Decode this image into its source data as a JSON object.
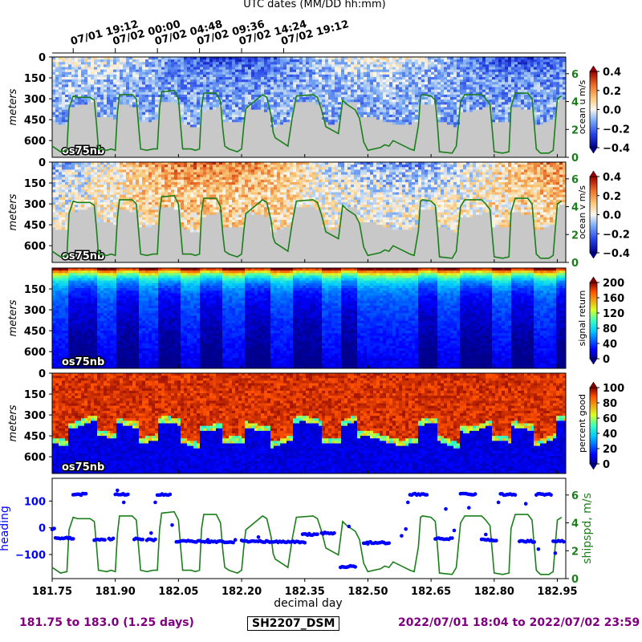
{
  "header": {
    "utc_title": "UTC dates (MM/DD hh:mm)"
  },
  "top_ticks": [
    "07/01 19:12",
    "07/02 00:00",
    "07/02 04:48",
    "07/02 09:36",
    "07/02 14:24",
    "07/02 19:12"
  ],
  "footer": {
    "range_text": "181.75 to 183.0 (1.25 days)",
    "cruise_label": "SH2207_DSM",
    "dates_text": "2022/07/01 18:04 to 2022/07/02 23:59"
  },
  "colors": {
    "shipspd": "#1a7f1a",
    "heading": "#0000ff",
    "footer": "#800080",
    "bad_data": "#c8c8c8"
  },
  "chart_data": [
    {
      "type": "heatmap",
      "panel": "u",
      "ylabel": "meters",
      "yticks": [
        "0",
        "150",
        "300",
        "450",
        "600"
      ],
      "instrument": "os75nb",
      "colorbar_label": "ocean u m/s",
      "cmap": "bwr",
      "cbar_ticks": [
        "0.4",
        "0.2",
        "0.0",
        "−0.2",
        "−0.4"
      ],
      "clim": [
        -0.4,
        0.4
      ],
      "right_axis_ticks": [
        "0",
        "2",
        "4",
        "6"
      ]
    },
    {
      "type": "heatmap",
      "panel": "v",
      "ylabel": "meters",
      "yticks": [
        "0",
        "150",
        "300",
        "450",
        "600"
      ],
      "instrument": "os75nb",
      "colorbar_label": "ocean v m/s",
      "cmap": "bwr",
      "cbar_ticks": [
        "0.4",
        "0.2",
        "0.0",
        "−0.2",
        "−0.4"
      ],
      "clim": [
        -0.4,
        0.4
      ],
      "right_axis_ticks": [
        "0",
        "2",
        "4",
        "6"
      ]
    },
    {
      "type": "heatmap",
      "panel": "signal",
      "ylabel": "meters",
      "yticks": [
        "150",
        "300",
        "450",
        "600"
      ],
      "instrument": "os75nb",
      "colorbar_label": "signal return",
      "cmap": "jet",
      "cbar_ticks": [
        "200",
        "160",
        "120",
        "80",
        "40",
        "0"
      ],
      "clim": [
        0,
        200
      ]
    },
    {
      "type": "heatmap",
      "panel": "pg",
      "ylabel": "meters",
      "yticks": [
        "0",
        "150",
        "300",
        "450",
        "600"
      ],
      "instrument": "os75nb",
      "colorbar_label": "percent good",
      "cmap": "jet",
      "cbar_ticks": [
        "100",
        "80",
        "60",
        "40",
        "20",
        "0"
      ],
      "clim": [
        0,
        100
      ]
    },
    {
      "type": "scatter",
      "panel": "nav",
      "xlabel": "decimal day",
      "xticks": [
        "181.75",
        "181.90",
        "182.05",
        "182.20",
        "182.35",
        "182.50",
        "182.65",
        "182.80",
        "182.95"
      ],
      "xlim": [
        181.75,
        182.97
      ],
      "ylabel": "heading",
      "yticks": [
        "100",
        "0",
        "−100"
      ],
      "ylim": [
        -190,
        185
      ],
      "y2label": "shipspd, m/s",
      "y2ticks": [
        "6",
        "4",
        "2",
        "0"
      ],
      "y2lim": [
        0,
        7.2
      ],
      "shipspd": {
        "x": [
          181.75,
          181.77,
          181.785,
          181.79,
          181.8,
          181.81,
          181.84,
          181.85,
          181.855,
          181.86,
          181.88,
          181.89,
          181.9,
          181.905,
          181.91,
          181.94,
          181.95,
          181.955,
          181.96,
          181.975,
          181.99,
          182.0,
          182.005,
          182.01,
          182.04,
          182.05,
          182.055,
          182.06,
          182.08,
          182.09,
          182.1,
          182.105,
          182.11,
          182.14,
          182.15,
          182.155,
          182.16,
          182.17,
          182.19,
          182.2,
          182.205,
          182.21,
          182.25,
          182.26,
          182.27,
          182.275,
          182.28,
          182.3,
          182.31,
          182.32,
          182.33,
          182.37,
          182.38,
          182.39,
          182.4,
          182.43,
          182.44,
          182.45,
          182.47,
          182.48,
          182.49,
          182.5,
          182.53,
          182.54,
          182.55,
          182.56,
          182.6,
          182.61,
          182.62,
          182.625,
          182.63,
          182.65,
          182.66,
          182.665,
          182.67,
          182.7,
          182.71,
          182.72,
          182.73,
          182.77,
          182.78,
          182.79,
          182.8,
          182.82,
          182.835,
          182.84,
          182.85,
          182.88,
          182.89,
          182.9,
          182.91,
          182.93,
          182.94,
          182.95,
          182.96
        ],
        "y": [
          0.8,
          0.4,
          0.5,
          3.5,
          4.4,
          4.3,
          4.3,
          4.1,
          2.5,
          0.6,
          0.5,
          0.6,
          0.5,
          3.2,
          4.5,
          4.5,
          4.2,
          2.4,
          0.6,
          0.5,
          0.6,
          0.6,
          3.5,
          4.7,
          4.8,
          4.2,
          2.3,
          0.6,
          0.6,
          0.5,
          0.6,
          3.6,
          4.6,
          4.6,
          4.0,
          2.1,
          0.8,
          0.6,
          0.4,
          0.6,
          2.2,
          3.5,
          4.5,
          4.3,
          3.0,
          1.8,
          1.4,
          1.0,
          0.8,
          2.8,
          4.4,
          4.5,
          4.3,
          3.4,
          2.2,
          1.7,
          4.1,
          3.8,
          3.4,
          2.8,
          1.1,
          0.5,
          0.7,
          0.9,
          0.8,
          1.2,
          0.6,
          0.5,
          2.3,
          4.4,
          4.5,
          4.4,
          4.1,
          2.4,
          0.4,
          0.3,
          0.8,
          4.0,
          4.5,
          4.5,
          4.2,
          3.8,
          0.4,
          0.3,
          0.4,
          3.6,
          4.6,
          4.6,
          4.2,
          0.6,
          0.3,
          0.3,
          0.5,
          4.2,
          4.4
        ]
      },
      "heading": {
        "segments": [
          {
            "x0": 181.75,
            "x1": 181.755,
            "y": -5
          },
          {
            "x0": 181.758,
            "x1": 181.8,
            "y": -38
          },
          {
            "x0": 181.8,
            "x1": 181.83,
            "y": 125
          },
          {
            "x0": 181.85,
            "x1": 181.875,
            "y": -45
          },
          {
            "x0": 181.885,
            "x1": 181.895,
            "y": -42
          },
          {
            "x0": 181.9,
            "x1": 181.93,
            "y": 125
          },
          {
            "x0": 181.945,
            "x1": 181.965,
            "y": -42
          },
          {
            "x0": 181.975,
            "x1": 181.995,
            "y": -45
          },
          {
            "x0": 182.0,
            "x1": 182.03,
            "y": 125
          },
          {
            "x0": 182.045,
            "x1": 182.18,
            "y": -50
          },
          {
            "x0": 182.2,
            "x1": 182.35,
            "y": -50
          },
          {
            "x0": 182.345,
            "x1": 182.38,
            "y": -25
          },
          {
            "x0": 182.39,
            "x1": 182.42,
            "y": -20
          },
          {
            "x0": 182.435,
            "x1": 182.47,
            "y": -145
          },
          {
            "x0": 182.49,
            "x1": 182.55,
            "y": -55
          },
          {
            "x0": 182.6,
            "x1": 182.64,
            "y": 125
          },
          {
            "x0": 182.66,
            "x1": 182.7,
            "y": -40
          },
          {
            "x0": 182.72,
            "x1": 182.755,
            "y": 125
          },
          {
            "x0": 182.77,
            "x1": 182.805,
            "y": -45
          },
          {
            "x0": 182.815,
            "x1": 182.85,
            "y": 125
          },
          {
            "x0": 182.86,
            "x1": 182.895,
            "y": -50
          },
          {
            "x0": 182.9,
            "x1": 182.935,
            "y": 125
          },
          {
            "x0": 182.94,
            "x1": 182.965,
            "y": -50
          }
        ],
        "extra": [
          {
            "x": 181.905,
            "y": 140
          },
          {
            "x": 181.92,
            "y": 95
          },
          {
            "x": 181.985,
            "y": -20
          },
          {
            "x": 181.995,
            "y": 95
          },
          {
            "x": 182.035,
            "y": 10
          },
          {
            "x": 182.12,
            "y": -45
          },
          {
            "x": 182.185,
            "y": -45
          },
          {
            "x": 182.24,
            "y": -35
          },
          {
            "x": 182.455,
            "y": 5
          },
          {
            "x": 182.5,
            "y": -60
          },
          {
            "x": 182.58,
            "y": -30
          },
          {
            "x": 182.59,
            "y": -5
          },
          {
            "x": 182.595,
            "y": 95
          },
          {
            "x": 182.685,
            "y": 70
          },
          {
            "x": 182.705,
            "y": -10
          },
          {
            "x": 182.74,
            "y": 75
          },
          {
            "x": 182.78,
            "y": -25
          },
          {
            "x": 182.81,
            "y": 95
          },
          {
            "x": 182.875,
            "y": 90
          },
          {
            "x": 182.905,
            "y": -80
          },
          {
            "x": 182.945,
            "y": -95
          }
        ]
      }
    }
  ]
}
